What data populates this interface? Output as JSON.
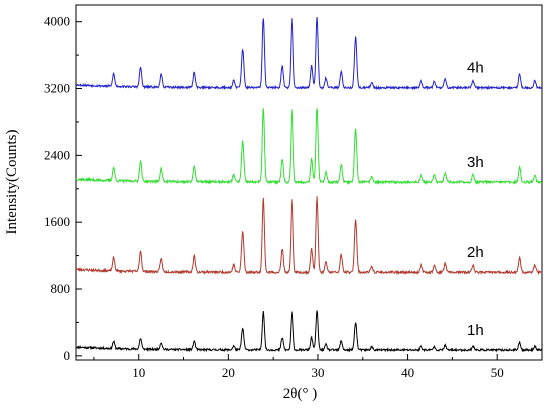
{
  "chart_data": {
    "type": "line",
    "title": "",
    "xlabel": "2θ(° )",
    "ylabel": "Intensity(Counts)",
    "xlim": [
      3,
      55
    ],
    "ylim": [
      -50,
      4200
    ],
    "x_ticks": [
      10,
      20,
      30,
      40,
      50
    ],
    "y_ticks": [
      0,
      800,
      1600,
      2400,
      3200,
      4000
    ],
    "grid": false,
    "legend": "none",
    "peaks": [
      {
        "x": 7.2,
        "h": 0.18,
        "w": 0.12
      },
      {
        "x": 10.2,
        "h": 0.28,
        "w": 0.12
      },
      {
        "x": 12.5,
        "h": 0.18,
        "w": 0.12
      },
      {
        "x": 16.2,
        "h": 0.22,
        "w": 0.12
      },
      {
        "x": 20.6,
        "h": 0.1,
        "w": 0.12
      },
      {
        "x": 21.6,
        "h": 0.55,
        "w": 0.13
      },
      {
        "x": 23.9,
        "h": 1.0,
        "w": 0.12
      },
      {
        "x": 26.0,
        "h": 0.32,
        "w": 0.12
      },
      {
        "x": 27.1,
        "h": 0.98,
        "w": 0.12
      },
      {
        "x": 29.3,
        "h": 0.32,
        "w": 0.12
      },
      {
        "x": 29.9,
        "h": 1.02,
        "w": 0.12
      },
      {
        "x": 30.9,
        "h": 0.14,
        "w": 0.12
      },
      {
        "x": 32.6,
        "h": 0.24,
        "w": 0.12
      },
      {
        "x": 34.2,
        "h": 0.72,
        "w": 0.13
      },
      {
        "x": 36.0,
        "h": 0.08,
        "w": 0.12
      },
      {
        "x": 41.5,
        "h": 0.1,
        "w": 0.12
      },
      {
        "x": 43.0,
        "h": 0.09,
        "w": 0.12
      },
      {
        "x": 44.2,
        "h": 0.12,
        "w": 0.12
      },
      {
        "x": 47.3,
        "h": 0.1,
        "w": 0.12
      },
      {
        "x": 52.5,
        "h": 0.2,
        "w": 0.12
      },
      {
        "x": 54.2,
        "h": 0.1,
        "w": 0.12
      }
    ],
    "series": [
      {
        "name": "1h",
        "color": "#000000",
        "baseline": 70,
        "peak_scale": 460,
        "noise": 12,
        "seed": 11
      },
      {
        "name": "2h",
        "color": "#b03a2e",
        "baseline": 1000,
        "peak_scale": 880,
        "noise": 14,
        "seed": 23
      },
      {
        "name": "3h",
        "color": "#33dd33",
        "baseline": 2080,
        "peak_scale": 880,
        "noise": 14,
        "seed": 37
      },
      {
        "name": "4h",
        "color": "#2222cc",
        "baseline": 3210,
        "peak_scale": 840,
        "noise": 12,
        "seed": 53
      }
    ]
  }
}
